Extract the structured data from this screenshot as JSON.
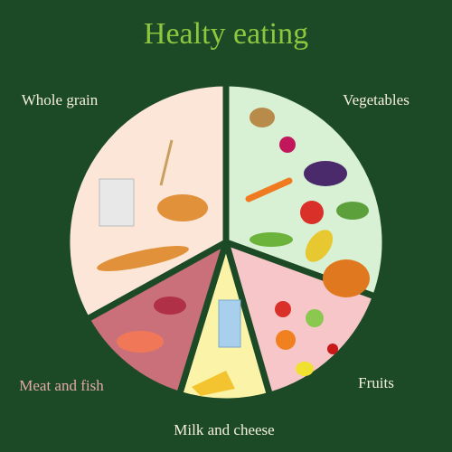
{
  "title": "Healty eating",
  "sections": [
    {
      "label": "Whole grain"
    },
    {
      "label": "Vegetables"
    },
    {
      "label": "Meat and fish"
    },
    {
      "label": "Fruits"
    },
    {
      "label": "Milk and cheese"
    }
  ]
}
